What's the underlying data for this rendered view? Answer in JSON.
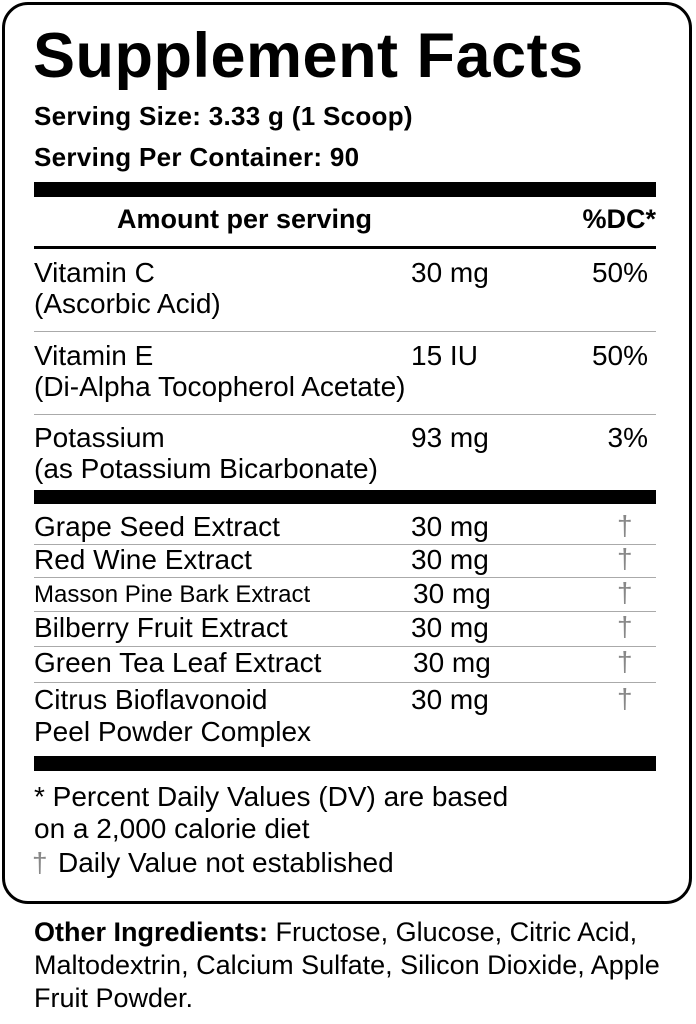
{
  "title": "Supplement Facts",
  "serving_size": "Serving Size: 3.33 g (1 Scoop)",
  "servings_per_container": "Serving Per Container: 90",
  "header": {
    "amount": "Amount per serving",
    "dv": "%DC*"
  },
  "vitamins": [
    {
      "name": "Vitamin C",
      "source": "(Ascorbic Acid)",
      "amount": "30 mg",
      "dv": "50%"
    },
    {
      "name": "Vitamin E",
      "source": "(Di-Alpha Tocopherol Acetate)",
      "amount": "15 IU",
      "dv": "50%"
    },
    {
      "name": "Potassium",
      "source": "(as Potassium Bicarbonate)",
      "amount": "93 mg",
      "dv": "3%"
    }
  ],
  "extracts": [
    {
      "name": "Grape Seed Extract",
      "amount": "30 mg",
      "dv": "†"
    },
    {
      "name": "Red Wine Extract",
      "amount": "30 mg",
      "dv": "†"
    },
    {
      "name": "Masson Pine Bark Extract",
      "amount": "30 mg",
      "dv": "†"
    },
    {
      "name": "Bilberry Fruit Extract",
      "amount": "30 mg",
      "dv": "†"
    },
    {
      "name": "Green Tea Leaf Extract",
      "amount": "30 mg",
      "dv": "†"
    },
    {
      "name": "Citrus Bioflavonoid",
      "name2": "Peel Powder Complex",
      "amount": "30 mg",
      "dv": "†"
    }
  ],
  "footnotes": {
    "line1": "* Percent Daily Values (DV) are based",
    "line2": "on a 2,000 calorie diet",
    "dagger": "†",
    "line3": "Daily Value not established"
  },
  "other_ingredients": {
    "label": "Other Ingredients:",
    "text": " Fructose, Glucose, Citric Acid, Maltodextrin, Calcium Sulfate, Silicon Dioxide, Apple Fruit Powder."
  }
}
